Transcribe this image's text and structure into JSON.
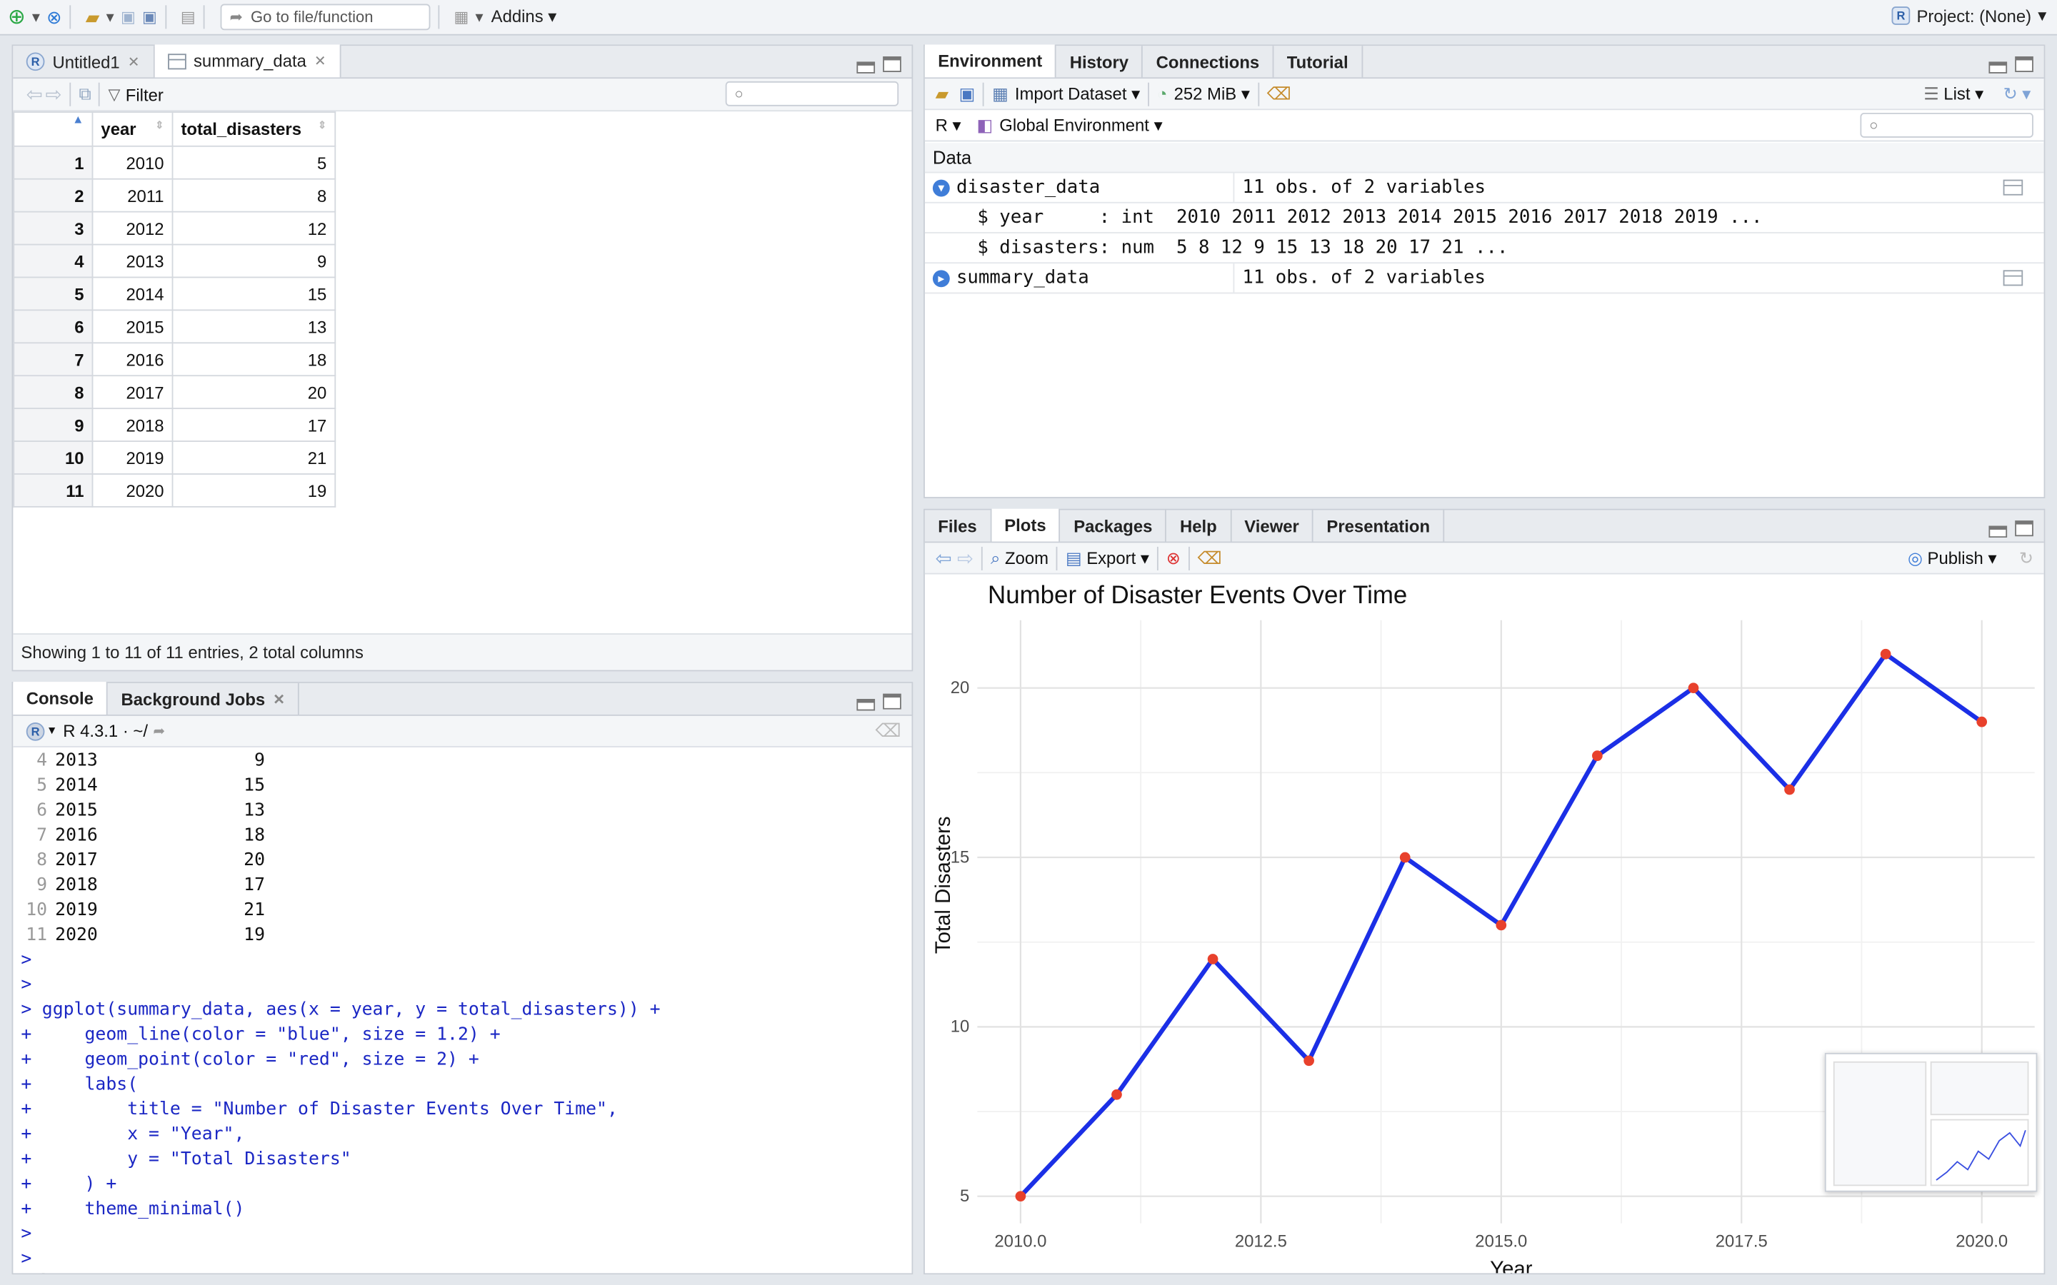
{
  "toolbar": {
    "goto_placeholder": "Go to file/function",
    "addins_label": "Addins",
    "project_label": "Project: (None)"
  },
  "source_pane": {
    "tabs": [
      {
        "label": "Untitled1"
      },
      {
        "label": "summary_data"
      }
    ],
    "filter_label": "Filter",
    "columns": [
      "year",
      "total_disasters"
    ],
    "rows": [
      {
        "n": "1",
        "year": "2010",
        "total": "5"
      },
      {
        "n": "2",
        "year": "2011",
        "total": "8"
      },
      {
        "n": "3",
        "year": "2012",
        "total": "12"
      },
      {
        "n": "4",
        "year": "2013",
        "total": "9"
      },
      {
        "n": "5",
        "year": "2014",
        "total": "15"
      },
      {
        "n": "6",
        "year": "2015",
        "total": "13"
      },
      {
        "n": "7",
        "year": "2016",
        "total": "18"
      },
      {
        "n": "8",
        "year": "2017",
        "total": "20"
      },
      {
        "n": "9",
        "year": "2018",
        "total": "17"
      },
      {
        "n": "10",
        "year": "2019",
        "total": "21"
      },
      {
        "n": "11",
        "year": "2020",
        "total": "19"
      }
    ],
    "status": "Showing 1 to 11 of 11 entries, 2 total columns"
  },
  "console_pane": {
    "tabs": [
      {
        "label": "Console"
      },
      {
        "label": "Background Jobs"
      }
    ],
    "r_version": "R 4.3.1 · ~/",
    "output_rows": [
      {
        "n": "4",
        "year": "2013",
        "val": "9"
      },
      {
        "n": "5",
        "year": "2014",
        "val": "15"
      },
      {
        "n": "6",
        "year": "2015",
        "val": "13"
      },
      {
        "n": "7",
        "year": "2016",
        "val": "18"
      },
      {
        "n": "8",
        "year": "2017",
        "val": "20"
      },
      {
        "n": "9",
        "year": "2018",
        "val": "17"
      },
      {
        "n": "10",
        "year": "2019",
        "val": "21"
      },
      {
        "n": "11",
        "year": "2020",
        "val": "19"
      }
    ],
    "code_lines": [
      {
        "prompt": ">",
        "text": ""
      },
      {
        "prompt": ">",
        "text": ""
      },
      {
        "prompt": ">",
        "text": "ggplot(summary_data, aes(x = year, y = total_disasters)) +"
      },
      {
        "prompt": "+",
        "text": "    geom_line(color = \"blue\", size = 1.2) +"
      },
      {
        "prompt": "+",
        "text": "    geom_point(color = \"red\", size = 2) +"
      },
      {
        "prompt": "+",
        "text": "    labs("
      },
      {
        "prompt": "+",
        "text": "        title = \"Number of Disaster Events Over Time\","
      },
      {
        "prompt": "+",
        "text": "        x = \"Year\","
      },
      {
        "prompt": "+",
        "text": "        y = \"Total Disasters\""
      },
      {
        "prompt": "+",
        "text": "    ) +"
      },
      {
        "prompt": "+",
        "text": "    theme_minimal()"
      },
      {
        "prompt": ">",
        "text": ""
      },
      {
        "prompt": ">",
        "text": ""
      }
    ]
  },
  "env_pane": {
    "tabs": [
      {
        "label": "Environment"
      },
      {
        "label": "History"
      },
      {
        "label": "Connections"
      },
      {
        "label": "Tutorial"
      }
    ],
    "import_label": "Import Dataset",
    "memory_label": "252 MiB",
    "list_label": "List",
    "lang_label": "R",
    "scope_label": "Global Environment",
    "section_label": "Data",
    "items": [
      {
        "name": "disaster_data",
        "value": "11 obs. of 2 variables"
      },
      {
        "name": "summary_data",
        "value": "11 obs. of 2 variables"
      }
    ],
    "details": [
      "$ year     : int  2010 2011 2012 2013 2014 2015 2016 2017 2018 2019 ...",
      "$ disasters: num  5 8 12 9 15 13 18 20 17 21 ..."
    ]
  },
  "plots_pane": {
    "tabs": [
      {
        "label": "Files"
      },
      {
        "label": "Plots"
      },
      {
        "label": "Packages"
      },
      {
        "label": "Help"
      },
      {
        "label": "Viewer"
      },
      {
        "label": "Presentation"
      }
    ],
    "zoom_label": "Zoom",
    "export_label": "Export",
    "publish_label": "Publish"
  },
  "chart_data": {
    "type": "line",
    "title": "Number of Disaster Events Over Time",
    "xlabel": "Year",
    "ylabel": "Total Disasters",
    "x": [
      2010,
      2011,
      2012,
      2013,
      2014,
      2015,
      2016,
      2017,
      2018,
      2019,
      2020
    ],
    "y": [
      5,
      8,
      12,
      9,
      15,
      13,
      18,
      20,
      17,
      21,
      19
    ],
    "xlim": [
      2010,
      2020
    ],
    "ylim": [
      5,
      21
    ],
    "xticks": [
      "2010.0",
      "2012.5",
      "2015.0",
      "2017.5",
      "2020.0"
    ],
    "yticks": [
      "5",
      "10",
      "15",
      "20"
    ],
    "line_color": "#1b2fe6",
    "point_color": "#e8412c",
    "grid": true
  }
}
